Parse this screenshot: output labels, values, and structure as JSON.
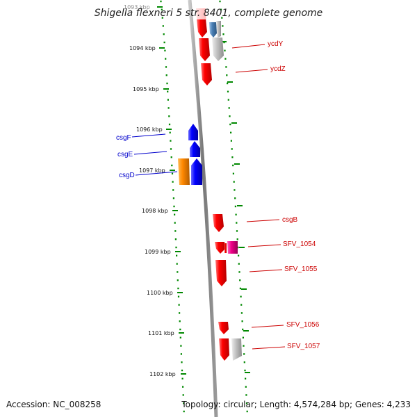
{
  "title": "Shigella flexneri 5 str. 8401, complete genome",
  "accession": "Accession: NC_008258",
  "topology": "Topology: circular; Length: 4,574,284 bp; Genes: 4,233",
  "kbp_labels": [
    "1093 kbp",
    "1094 kbp",
    "1095 kbp",
    "1096 kbp",
    "1097 kbp",
    "1098 kbp",
    "1099 kbp",
    "1100 kbp",
    "1101 kbp",
    "1102 kbp"
  ],
  "left_genes": [
    {
      "name": "csgF",
      "color": "#0000cc"
    },
    {
      "name": "csgE",
      "color": "#0000cc"
    },
    {
      "name": "csgD",
      "color": "#0000cc"
    }
  ],
  "right_genes": [
    {
      "name": "ycdY",
      "color": "#cc0000"
    },
    {
      "name": "ycdZ",
      "color": "#cc0000"
    },
    {
      "name": "csgB",
      "color": "#cc0000"
    },
    {
      "name": "SFV_1054",
      "color": "#cc0000"
    },
    {
      "name": "SFV_1055",
      "color": "#cc0000"
    },
    {
      "name": "SFV_1056",
      "color": "#cc0000"
    },
    {
      "name": "SFV_1057",
      "color": "#cc0000"
    }
  ],
  "feature_colors": {
    "forward_cds": "#ee0000",
    "reverse_cds": "#0000ee",
    "orf": "#ff8800",
    "pseudo": "#ee0088",
    "other": "#b4b4b4",
    "trna": "#4a7fb5",
    "backbone": "#8a8a8a",
    "ruler": "#008800"
  }
}
